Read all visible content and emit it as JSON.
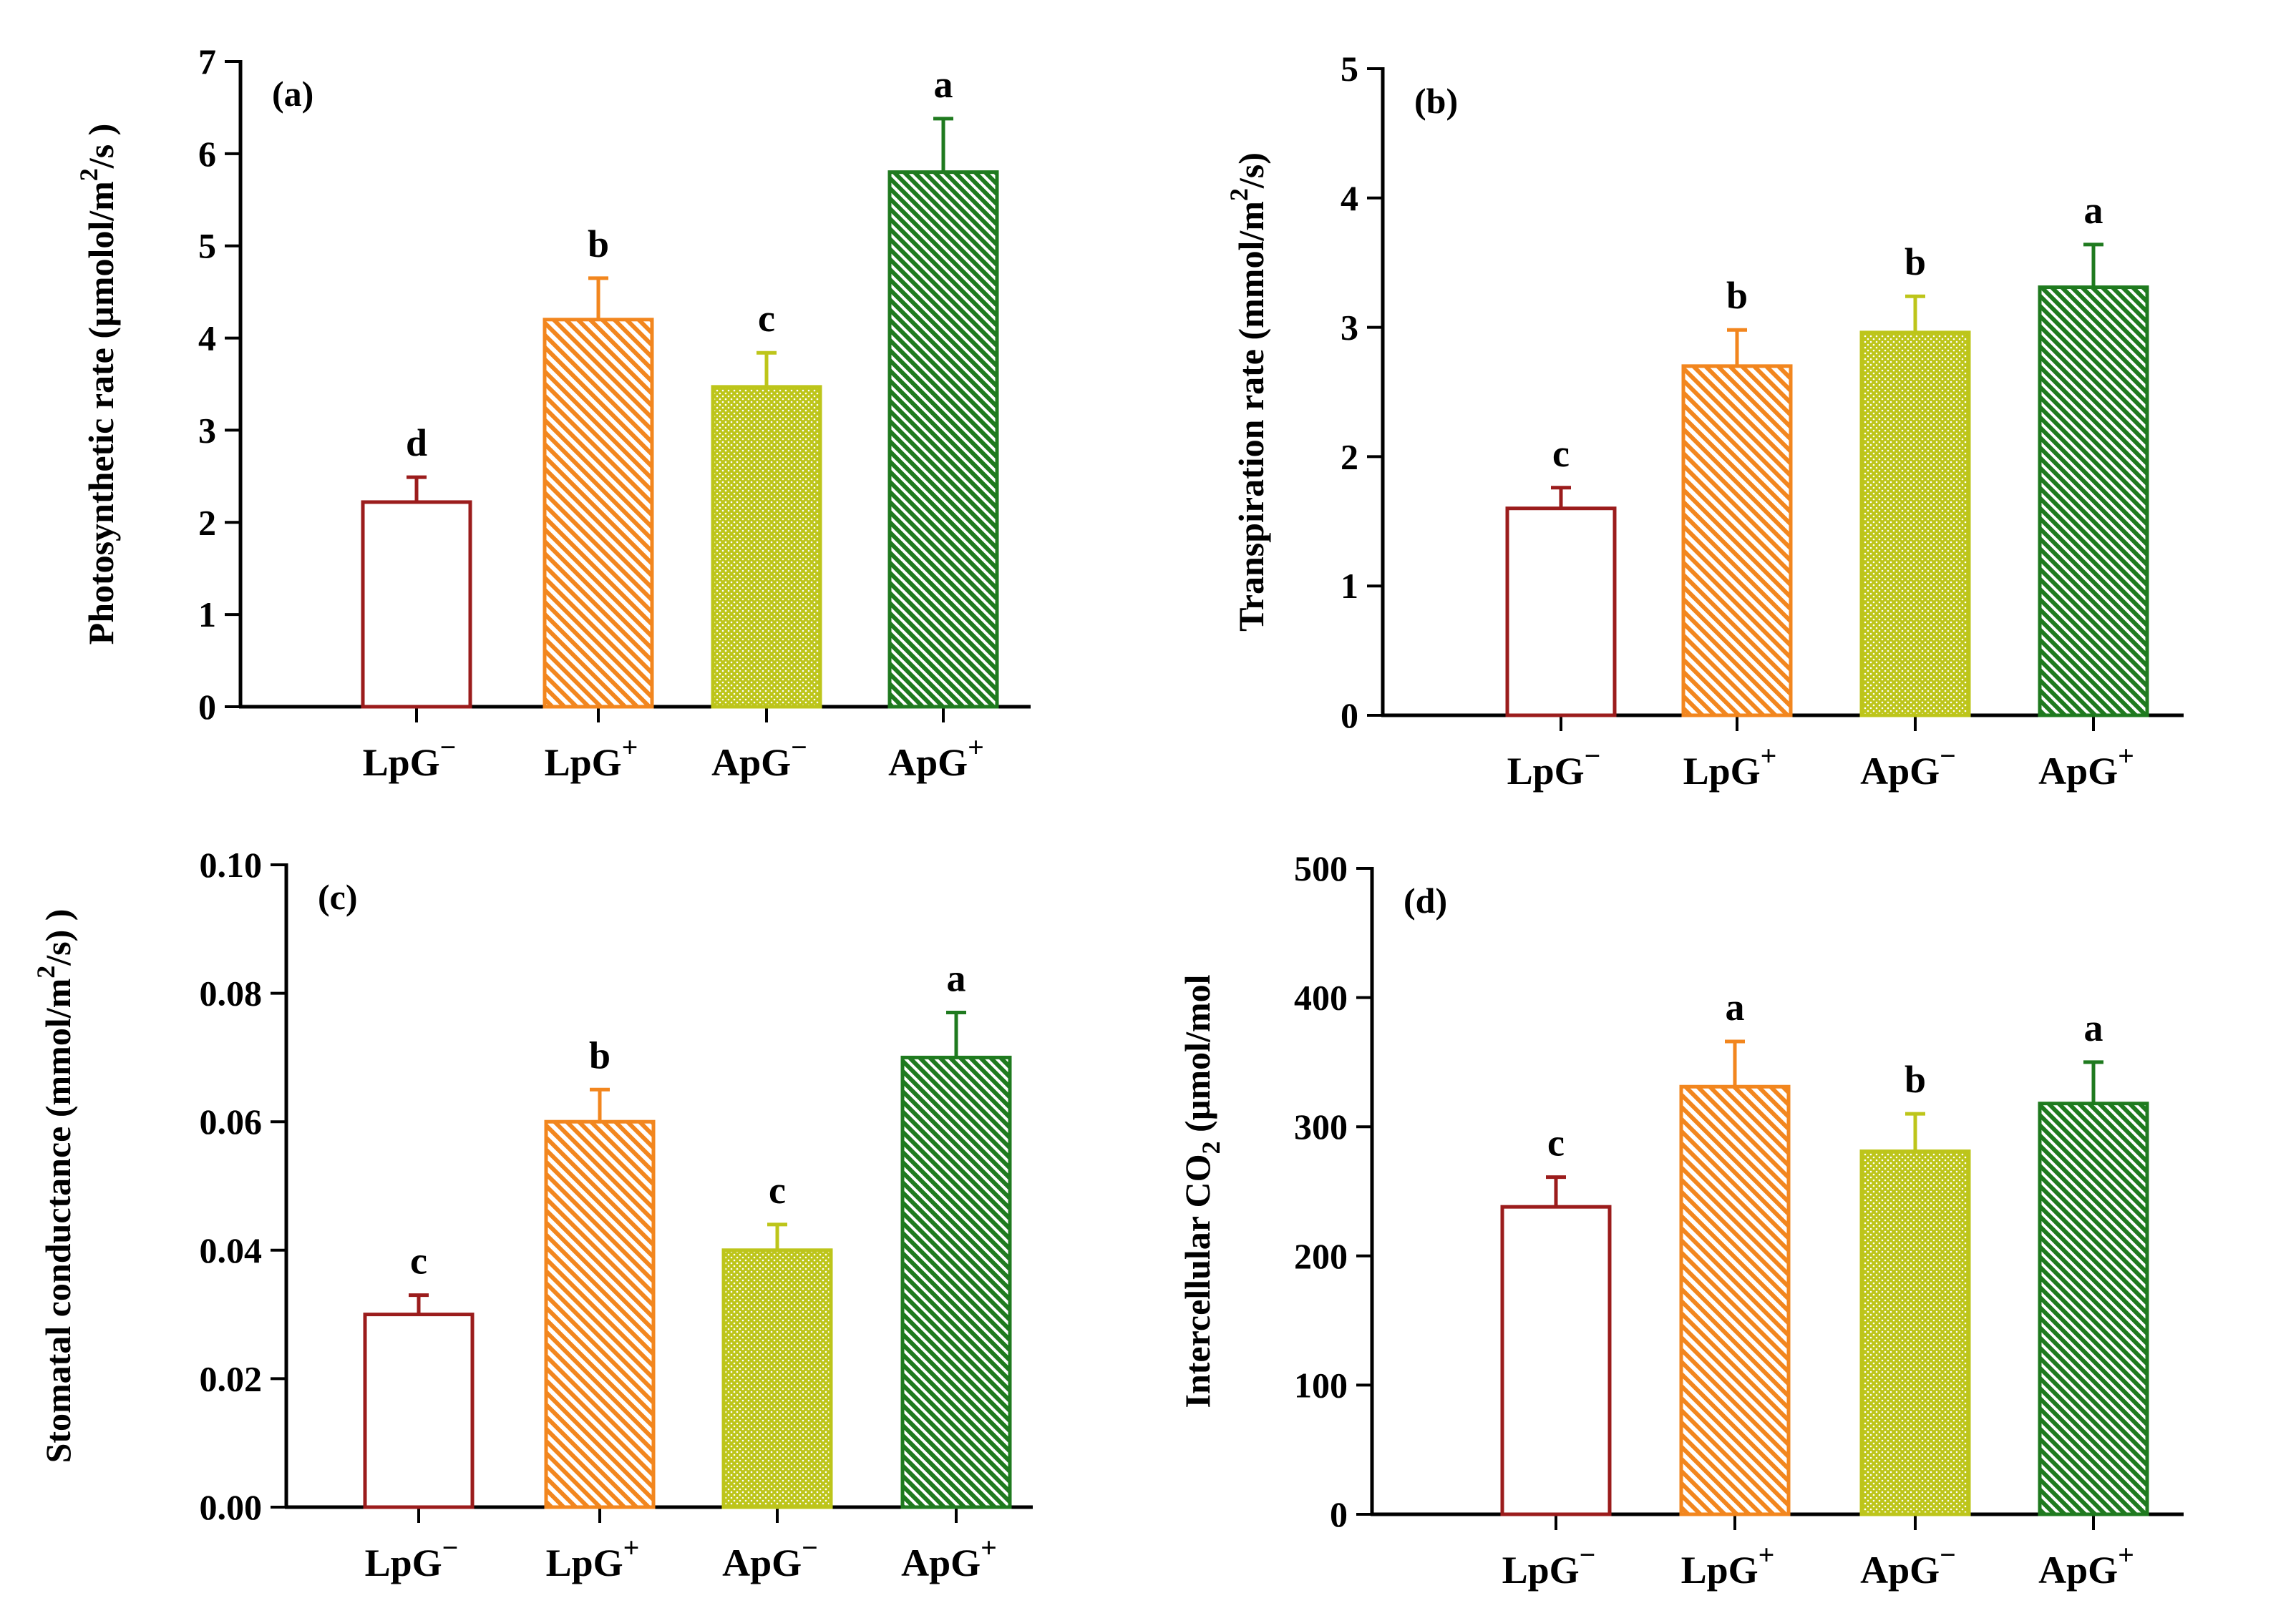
{
  "colors": {
    "LpG_minus": "#9B1C1C",
    "LpG_plus": "#F2861E",
    "ApG_minus": "#BDC51A",
    "ApG_plus": "#1F7A1F"
  },
  "categories": [
    {
      "base": "LpG",
      "sup": "−"
    },
    {
      "base": "LpG",
      "sup": "+"
    },
    {
      "base": "ApG",
      "sup": "−"
    },
    {
      "base": "ApG",
      "sup": "+"
    }
  ],
  "chart_data": [
    {
      "type": "bar",
      "panel_label": "(a)",
      "ylabel": {
        "pre": "Photosynthetic rate (µmolol/m",
        "sup": "2",
        "post": "/s )"
      },
      "ylim": [
        0,
        7
      ],
      "yticks": [
        "0",
        "1",
        "2",
        "3",
        "4",
        "5",
        "6",
        "7"
      ],
      "categories": [
        "LpG−",
        "LpG+",
        "ApG−",
        "ApG+"
      ],
      "values": [
        2.22,
        4.2,
        3.47,
        5.8
      ],
      "errors": [
        0.27,
        0.45,
        0.37,
        0.58
      ],
      "letters": [
        "d",
        "b",
        "c",
        "a"
      ]
    },
    {
      "type": "bar",
      "panel_label": "(b)",
      "ylabel": {
        "pre": "Transpiration rate  (mmol/m",
        "sup": "2",
        "post": "/s)"
      },
      "ylim": [
        0,
        5
      ],
      "yticks": [
        "0",
        "1",
        "2",
        "3",
        "4",
        "5"
      ],
      "categories": [
        "LpG−",
        "LpG+",
        "ApG−",
        "ApG+"
      ],
      "values": [
        1.6,
        2.7,
        2.96,
        3.31
      ],
      "errors": [
        0.16,
        0.28,
        0.28,
        0.33
      ],
      "letters": [
        "c",
        "b",
        "b",
        "a"
      ]
    },
    {
      "type": "bar",
      "panel_label": "(c)",
      "ylabel": {
        "pre": "Stomatal  conductance (mmol/m",
        "sup": "2",
        "post": "/s) )"
      },
      "ylim": [
        0,
        0.1
      ],
      "yticks": [
        "0.00",
        "0.02",
        "0.04",
        "0.06",
        "0.08",
        "0.10"
      ],
      "categories": [
        "LpG−",
        "LpG+",
        "ApG−",
        "ApG+"
      ],
      "values": [
        0.03,
        0.06,
        0.04,
        0.07
      ],
      "errors": [
        0.003,
        0.005,
        0.004,
        0.007
      ],
      "letters": [
        "c",
        "b",
        "c",
        "a"
      ]
    },
    {
      "type": "bar",
      "panel_label": "(d)",
      "ylabel": {
        "pre": "Intercellular CO",
        "sub": "2",
        "post": " (µmol/mol"
      },
      "ylim": [
        0,
        500
      ],
      "yticks": [
        "0",
        "100",
        "200",
        "300",
        "400",
        "500"
      ],
      "categories": [
        "LpG−",
        "LpG+",
        "ApG−",
        "ApG+"
      ],
      "values": [
        238,
        331,
        281,
        318
      ],
      "errors": [
        23,
        35,
        29,
        32
      ],
      "letters": [
        "c",
        "a",
        "b",
        "a"
      ]
    }
  ]
}
